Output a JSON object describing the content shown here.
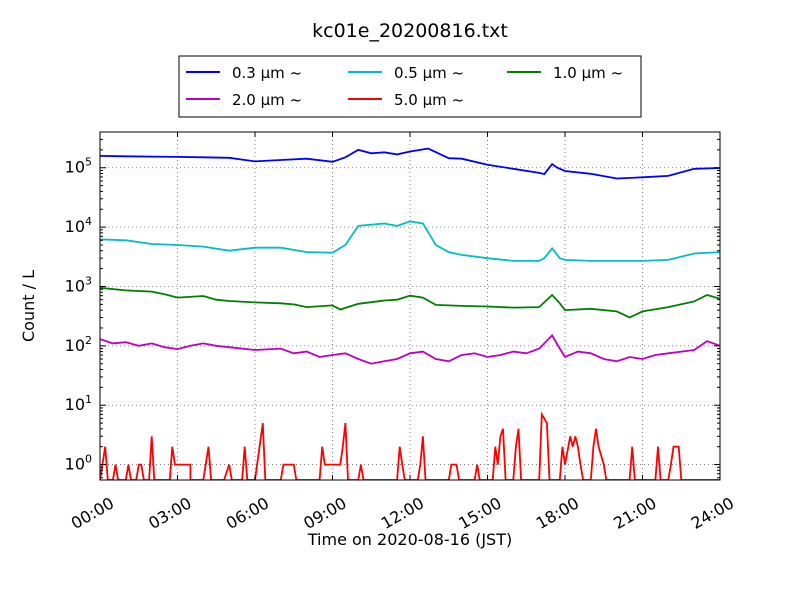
{
  "chart_data": {
    "type": "line",
    "title": "kc01e_20200816.txt",
    "xlabel": "Time on 2020-08-16 (JST)",
    "ylabel": "Count / L",
    "y_scale": "log",
    "ylim": [
      0.55,
      400000
    ],
    "xlim": [
      "00:00",
      "24:00"
    ],
    "grid": true,
    "legend_position": "top-center (above plot)",
    "x_ticks": [
      "00:00",
      "03:00",
      "06:00",
      "09:00",
      "12:00",
      "15:00",
      "18:00",
      "21:00",
      "24:00"
    ],
    "y_ticks": [
      {
        "value": 1,
        "base": "10",
        "exp": "0"
      },
      {
        "value": 10,
        "base": "10",
        "exp": "1"
      },
      {
        "value": 100,
        "base": "10",
        "exp": "2"
      },
      {
        "value": 1000,
        "base": "10",
        "exp": "3"
      },
      {
        "value": 10000,
        "base": "10",
        "exp": "4"
      },
      {
        "value": 100000,
        "base": "10",
        "exp": "5"
      }
    ],
    "series": [
      {
        "name": "0.3 μm  ~",
        "color": "#0000ff",
        "points": [
          [
            0,
            158000
          ],
          [
            1,
            156000
          ],
          [
            2,
            154000
          ],
          [
            3,
            152000
          ],
          [
            4,
            150000
          ],
          [
            5,
            147000
          ],
          [
            6,
            128000
          ],
          [
            7,
            135000
          ],
          [
            8,
            142000
          ],
          [
            9,
            126000
          ],
          [
            9.5,
            150000
          ],
          [
            10,
            200000
          ],
          [
            10.5,
            175000
          ],
          [
            11,
            182000
          ],
          [
            11.5,
            168000
          ],
          [
            12,
            188000
          ],
          [
            12.7,
            210000
          ],
          [
            13.5,
            145000
          ],
          [
            14,
            142000
          ],
          [
            15,
            112000
          ],
          [
            16,
            96000
          ],
          [
            17,
            82000
          ],
          [
            17.2,
            78000
          ],
          [
            17.5,
            115000
          ],
          [
            17.7,
            100000
          ],
          [
            18,
            88000
          ],
          [
            19,
            79000
          ],
          [
            20,
            66000
          ],
          [
            21,
            69000
          ],
          [
            22,
            73000
          ],
          [
            23,
            96000
          ],
          [
            24,
            99000
          ]
        ]
      },
      {
        "name": "0.5 μm  ~",
        "color": "#00bfbf",
        "points": [
          [
            0,
            6200
          ],
          [
            1,
            6000
          ],
          [
            2,
            5200
          ],
          [
            3,
            5000
          ],
          [
            4,
            4700
          ],
          [
            5,
            4000
          ],
          [
            6,
            4500
          ],
          [
            7,
            4500
          ],
          [
            8,
            3800
          ],
          [
            9,
            3700
          ],
          [
            9.5,
            5000
          ],
          [
            10,
            10500
          ],
          [
            11,
            11500
          ],
          [
            11.5,
            10500
          ],
          [
            12,
            12500
          ],
          [
            12.5,
            11500
          ],
          [
            13,
            5000
          ],
          [
            13.5,
            3800
          ],
          [
            14,
            3400
          ],
          [
            15,
            3000
          ],
          [
            16,
            2700
          ],
          [
            17,
            2700
          ],
          [
            17.2,
            3000
          ],
          [
            17.5,
            4400
          ],
          [
            17.8,
            3000
          ],
          [
            18,
            2800
          ],
          [
            19,
            2700
          ],
          [
            20,
            2700
          ],
          [
            21,
            2700
          ],
          [
            22,
            2800
          ],
          [
            23,
            3600
          ],
          [
            24,
            3800
          ]
        ]
      },
      {
        "name": "1.0 μm  ~",
        "color": "#008000",
        "points": [
          [
            0,
            950
          ],
          [
            1,
            860
          ],
          [
            2,
            820
          ],
          [
            2.5,
            740
          ],
          [
            3,
            650
          ],
          [
            4,
            690
          ],
          [
            4.5,
            600
          ],
          [
            5,
            570
          ],
          [
            6,
            540
          ],
          [
            7,
            520
          ],
          [
            7.5,
            500
          ],
          [
            8,
            450
          ],
          [
            9,
            480
          ],
          [
            9.3,
            410
          ],
          [
            10,
            510
          ],
          [
            11,
            580
          ],
          [
            11.5,
            600
          ],
          [
            12,
            700
          ],
          [
            12.5,
            650
          ],
          [
            13,
            490
          ],
          [
            14,
            470
          ],
          [
            15,
            460
          ],
          [
            16,
            440
          ],
          [
            17,
            450
          ],
          [
            17.5,
            720
          ],
          [
            17.8,
            520
          ],
          [
            18,
            400
          ],
          [
            19,
            420
          ],
          [
            20,
            380
          ],
          [
            20.5,
            300
          ],
          [
            21,
            380
          ],
          [
            22,
            450
          ],
          [
            23,
            560
          ],
          [
            23.5,
            720
          ],
          [
            24,
            620
          ]
        ]
      },
      {
        "name": "2.0 μm  ~",
        "color": "#bf00bf",
        "points": [
          [
            0,
            130
          ],
          [
            0.5,
            110
          ],
          [
            1,
            115
          ],
          [
            1.5,
            100
          ],
          [
            2,
            110
          ],
          [
            2.5,
            95
          ],
          [
            3,
            88
          ],
          [
            3.5,
            100
          ],
          [
            4,
            110
          ],
          [
            4.5,
            100
          ],
          [
            5,
            95
          ],
          [
            6,
            85
          ],
          [
            7,
            90
          ],
          [
            7.5,
            75
          ],
          [
            8,
            80
          ],
          [
            8.5,
            65
          ],
          [
            9,
            70
          ],
          [
            9.5,
            75
          ],
          [
            10,
            60
          ],
          [
            10.5,
            50
          ],
          [
            11,
            55
          ],
          [
            11.5,
            60
          ],
          [
            12,
            75
          ],
          [
            12.5,
            80
          ],
          [
            13,
            60
          ],
          [
            13.5,
            55
          ],
          [
            14,
            70
          ],
          [
            14.5,
            75
          ],
          [
            15,
            65
          ],
          [
            15.5,
            70
          ],
          [
            16,
            80
          ],
          [
            16.5,
            75
          ],
          [
            17,
            90
          ],
          [
            17.5,
            150
          ],
          [
            17.8,
            90
          ],
          [
            18,
            65
          ],
          [
            18.5,
            80
          ],
          [
            19,
            75
          ],
          [
            19.5,
            60
          ],
          [
            20,
            55
          ],
          [
            20.5,
            65
          ],
          [
            21,
            60
          ],
          [
            21.5,
            70
          ],
          [
            22,
            75
          ],
          [
            22.5,
            80
          ],
          [
            23,
            85
          ],
          [
            23.5,
            120
          ],
          [
            24,
            100
          ]
        ]
      },
      {
        "name": "5.0 μm  ~",
        "color": "#ff0000",
        "points": [
          [
            0,
            0.55
          ],
          [
            0.2,
            2
          ],
          [
            0.3,
            0.55
          ],
          [
            0.5,
            0.55
          ],
          [
            0.6,
            1
          ],
          [
            0.7,
            0.55
          ],
          [
            1,
            0.55
          ],
          [
            1.1,
            1
          ],
          [
            1.2,
            0.55
          ],
          [
            1.4,
            0.55
          ],
          [
            1.5,
            1
          ],
          [
            1.6,
            1
          ],
          [
            1.7,
            0.55
          ],
          [
            1.9,
            0.55
          ],
          [
            2,
            3
          ],
          [
            2.1,
            0.55
          ],
          [
            2.6,
            0.55
          ],
          [
            2.7,
            0.55
          ],
          [
            2.8,
            2
          ],
          [
            2.9,
            1
          ],
          [
            3.5,
            1
          ],
          [
            3.5,
            0.55
          ],
          [
            4,
            0.55
          ],
          [
            4.2,
            2
          ],
          [
            4.3,
            0.55
          ],
          [
            4.8,
            0.55
          ],
          [
            5,
            1
          ],
          [
            5.1,
            0.55
          ],
          [
            5.5,
            0.55
          ],
          [
            5.6,
            2
          ],
          [
            5.7,
            0.55
          ],
          [
            6,
            0.55
          ],
          [
            6.3,
            5
          ],
          [
            6.4,
            0.55
          ],
          [
            7,
            0.55
          ],
          [
            7.1,
            1
          ],
          [
            7.5,
            1
          ],
          [
            7.6,
            0.55
          ],
          [
            8.5,
            0.55
          ],
          [
            8.6,
            2
          ],
          [
            8.7,
            1
          ],
          [
            9.3,
            1
          ],
          [
            9.4,
            2
          ],
          [
            9.5,
            5
          ],
          [
            9.6,
            0.55
          ],
          [
            10,
            0.55
          ],
          [
            10.1,
            1
          ],
          [
            10.2,
            0.55
          ],
          [
            11.5,
            0.55
          ],
          [
            11.6,
            2
          ],
          [
            11.7,
            1
          ],
          [
            11.8,
            0.55
          ],
          [
            12.3,
            0.55
          ],
          [
            12.4,
            1
          ],
          [
            12.5,
            3
          ],
          [
            12.6,
            0.55
          ],
          [
            13.5,
            0.55
          ],
          [
            13.6,
            1
          ],
          [
            13.8,
            1
          ],
          [
            13.9,
            0.55
          ],
          [
            14.5,
            0.55
          ],
          [
            14.6,
            1
          ],
          [
            14.7,
            0.55
          ],
          [
            15.2,
            0.55
          ],
          [
            15.3,
            2
          ],
          [
            15.4,
            1
          ],
          [
            15.5,
            3
          ],
          [
            15.6,
            4
          ],
          [
            15.7,
            0.55
          ],
          [
            16,
            0.55
          ],
          [
            16.1,
            2
          ],
          [
            16.2,
            4
          ],
          [
            16.3,
            0.55
          ],
          [
            17,
            0.55
          ],
          [
            17.1,
            7
          ],
          [
            17.3,
            5
          ],
          [
            17.4,
            0.55
          ],
          [
            17.8,
            0.55
          ],
          [
            17.9,
            2
          ],
          [
            18,
            1
          ],
          [
            18.2,
            3
          ],
          [
            18.3,
            2
          ],
          [
            18.4,
            3
          ],
          [
            18.5,
            2
          ],
          [
            18.6,
            1
          ],
          [
            18.7,
            0.55
          ],
          [
            19,
            0.55
          ],
          [
            19.1,
            2
          ],
          [
            19.2,
            4
          ],
          [
            19.3,
            2
          ],
          [
            19.5,
            1
          ],
          [
            19.6,
            0.55
          ],
          [
            20.5,
            0.55
          ],
          [
            20.6,
            2
          ],
          [
            20.7,
            0.55
          ],
          [
            21.5,
            0.55
          ],
          [
            21.6,
            2
          ],
          [
            21.7,
            0.55
          ],
          [
            22,
            0.55
          ],
          [
            22.1,
            1
          ],
          [
            22.2,
            2
          ],
          [
            22.4,
            2
          ],
          [
            22.5,
            0.55
          ],
          [
            24,
            0.55
          ]
        ]
      }
    ]
  }
}
